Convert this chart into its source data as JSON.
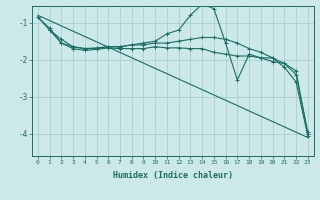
{
  "xlabel": "Humidex (Indice chaleur)",
  "bg_color": "#cce8e8",
  "grid_color": "#aad0d0",
  "line_color": "#1a6e64",
  "xlim": [
    -0.5,
    23.5
  ],
  "ylim": [
    -4.6,
    -0.55
  ],
  "xticks": [
    0,
    1,
    2,
    3,
    4,
    5,
    6,
    7,
    8,
    9,
    10,
    11,
    12,
    13,
    14,
    15,
    16,
    17,
    18,
    19,
    20,
    21,
    22,
    23
  ],
  "yticks": [
    -4,
    -3,
    -2,
    -1
  ],
  "line1": {
    "x": [
      0,
      1,
      2,
      3,
      4,
      5,
      6,
      7,
      8,
      9,
      10,
      11,
      12,
      13,
      14,
      15,
      16,
      17,
      18,
      19,
      20,
      21,
      22,
      23
    ],
    "y": [
      -0.85,
      -1.2,
      -1.55,
      -1.7,
      -1.75,
      -1.72,
      -1.68,
      -1.7,
      -1.7,
      -1.7,
      -1.65,
      -1.68,
      -1.68,
      -1.7,
      -1.7,
      -1.8,
      -1.85,
      -1.9,
      -1.9,
      -1.95,
      -2.05,
      -2.1,
      -2.4,
      -3.95
    ]
  },
  "line2": {
    "x": [
      0,
      1,
      2,
      3,
      4,
      5,
      6,
      7,
      8,
      9,
      10,
      11,
      12,
      13,
      14,
      15,
      16,
      17,
      18,
      19,
      20,
      21,
      22,
      23
    ],
    "y": [
      -0.85,
      -1.15,
      -1.55,
      -1.65,
      -1.7,
      -1.7,
      -1.65,
      -1.65,
      -1.6,
      -1.55,
      -1.5,
      -1.3,
      -1.2,
      -0.8,
      -0.5,
      -0.62,
      -1.55,
      -2.55,
      -1.85,
      -1.95,
      -1.95,
      -2.2,
      -2.6,
      -4.05
    ]
  },
  "line3": {
    "x": [
      1,
      2,
      3,
      4,
      5,
      6,
      7,
      8,
      9,
      10,
      11,
      12,
      13,
      14,
      15,
      16,
      17,
      18,
      19,
      20,
      21,
      22,
      23
    ],
    "y": [
      -1.2,
      -1.45,
      -1.65,
      -1.7,
      -1.68,
      -1.65,
      -1.65,
      -1.6,
      -1.6,
      -1.55,
      -1.55,
      -1.5,
      -1.45,
      -1.4,
      -1.4,
      -1.45,
      -1.55,
      -1.7,
      -1.8,
      -1.95,
      -2.1,
      -2.3,
      -4.0
    ]
  },
  "line4": {
    "x": [
      0,
      23
    ],
    "y": [
      -0.8,
      -4.1
    ]
  }
}
